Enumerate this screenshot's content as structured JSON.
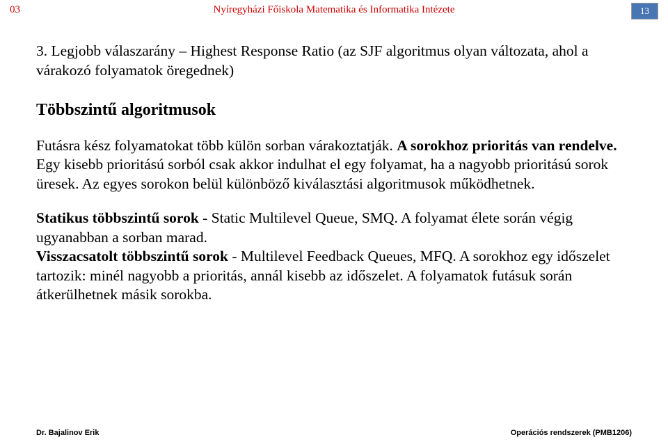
{
  "header": {
    "page_label": "03",
    "title": "Nyíregyházi Főiskola Matematika és Informatika Intézete",
    "page_number": "13"
  },
  "content": {
    "item3_number": "3.",
    "item3_text": " Legjobb válaszarány – Highest Response Ratio (az SJF algoritmus olyan változata, ahol a várakozó folyamatok öregednek)",
    "section_heading": "Többszintű algoritmusok",
    "para1_a": "Futásra kész folyamatokat több külön sorban várakoztatják. ",
    "para1_bold": "A sorokhoz prioritás van rendelve.",
    "para1_c": " Egy kisebb prioritású sorból csak akkor indulhat el egy folyamat, ha a nagyobb prioritású sorok üresek. Az egyes sorokon belül különböző kiválasztási algoritmusok működhetnek.",
    "para2_b1": "Statikus többszintű sorok",
    "para2_t1": " - Static Multilevel Queue, SMQ. A folyamat élete során végig ugyanabban a sorban marad.",
    "para2_b2": "Visszacsatolt többszintű sorok",
    "para2_t2": " - Multilevel Feedback Queues, MFQ. A sorokhoz egy időszelet tartozik: minél nagyobb a prioritás, annál kisebb az időszelet. A folyamatok futásuk során átkerülhetnek másik sorokba."
  },
  "footer": {
    "left": "Dr. Bajalinov Erik",
    "right": "Operációs rendszerek (PMB1206)"
  }
}
